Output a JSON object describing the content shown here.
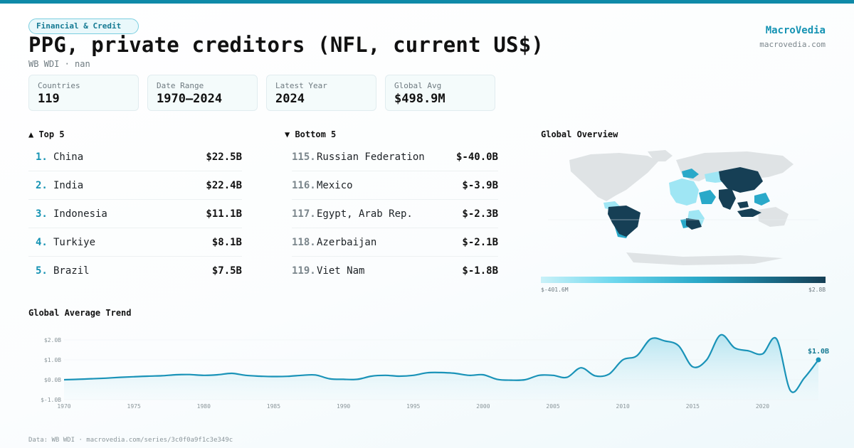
{
  "header": {
    "category": "Financial & Credit",
    "title": "PPG, private creditors (NFL, current US$)",
    "subtitle": "WB WDI · nan",
    "brand": "MacroVedia",
    "brand_url": "macrovedia.com"
  },
  "stats": [
    {
      "label": "Countries",
      "value": "119"
    },
    {
      "label": "Date Range",
      "value": "1970–2024"
    },
    {
      "label": "Latest Year",
      "value": "2024"
    },
    {
      "label": "Global Avg",
      "value": "$498.9M"
    }
  ],
  "top5": {
    "heading": "▲ Top 5",
    "items": [
      {
        "rank": "1.",
        "name": "China",
        "value": "$22.5B"
      },
      {
        "rank": "2.",
        "name": "India",
        "value": "$22.4B"
      },
      {
        "rank": "3.",
        "name": "Indonesia",
        "value": "$11.1B"
      },
      {
        "rank": "4.",
        "name": "Turkiye",
        "value": "$8.1B"
      },
      {
        "rank": "5.",
        "name": "Brazil",
        "value": "$7.5B"
      }
    ]
  },
  "bottom5": {
    "heading": "▼ Bottom 5",
    "items": [
      {
        "rank": "115.",
        "name": "Russian Federation",
        "value": "$-40.0B"
      },
      {
        "rank": "116.",
        "name": "Mexico",
        "value": "$-3.9B"
      },
      {
        "rank": "117.",
        "name": "Egypt, Arab Rep.",
        "value": "$-2.3B"
      },
      {
        "rank": "118.",
        "name": "Azerbaijan",
        "value": "$-2.1B"
      },
      {
        "rank": "119.",
        "name": "Viet Nam",
        "value": "$-1.8B"
      }
    ]
  },
  "map": {
    "heading": "Global Overview",
    "legend_min": "$-401.6M",
    "legend_max": "$2.8B"
  },
  "colors": {
    "accent": "#1593b3",
    "line": "#1a93b8",
    "area": "#bfe8f2",
    "map_dark": "#163f55",
    "map_mid": "#2aa9c9",
    "map_light": "#9fe6f4",
    "map_none": "#dfe3e5"
  },
  "trend": {
    "heading": "Global Average Trend",
    "last_label": "$1.0B"
  },
  "footer": "Data: WB WDI · macrovedia.com/series/3c0f0a9f1c3e349c",
  "chart_data": {
    "type": "area",
    "title": "Global Average Trend",
    "xlabel": "",
    "ylabel": "",
    "xlim": [
      1970,
      2024
    ],
    "ylim": [
      -1.0,
      2.0
    ],
    "unit": "US$ billions",
    "yticks": [
      {
        "v": 2.0,
        "label": "$2.0B"
      },
      {
        "v": 1.0,
        "label": "$1.0B"
      },
      {
        "v": 0.0,
        "label": "$0.0B"
      },
      {
        "v": -1.0,
        "label": "$-1.0B"
      }
    ],
    "xticks": [
      1970,
      1975,
      1980,
      1985,
      1990,
      1995,
      2000,
      2005,
      2010,
      2015,
      2020
    ],
    "grid": false,
    "series": [
      {
        "x": [
          1970,
          1971,
          1972,
          1973,
          1974,
          1975,
          1976,
          1977,
          1978,
          1979,
          1980,
          1981,
          1982,
          1983,
          1984,
          1985,
          1986,
          1987,
          1988,
          1989,
          1990,
          1991,
          1992,
          1993,
          1994,
          1995,
          1996,
          1997,
          1998,
          1999,
          2000,
          2001,
          2002,
          2003,
          2004,
          2005,
          2006,
          2007,
          2008,
          2009,
          2010,
          2011,
          2012,
          2013,
          2014,
          2015,
          2016,
          2017,
          2018,
          2019,
          2020,
          2021,
          2022,
          2023,
          2024
        ],
        "y": [
          0.0,
          0.02,
          0.05,
          0.08,
          0.12,
          0.15,
          0.18,
          0.2,
          0.25,
          0.26,
          0.22,
          0.25,
          0.32,
          0.22,
          0.18,
          0.16,
          0.17,
          0.22,
          0.24,
          0.05,
          0.02,
          0.02,
          0.18,
          0.22,
          0.18,
          0.22,
          0.35,
          0.36,
          0.32,
          0.22,
          0.25,
          0.02,
          -0.02,
          0.0,
          0.22,
          0.22,
          0.12,
          0.6,
          0.2,
          0.28,
          1.0,
          1.2,
          2.05,
          1.95,
          1.7,
          0.65,
          1.0,
          2.25,
          1.6,
          1.45,
          1.3,
          2.05,
          -0.55,
          0.1,
          1.0
        ]
      }
    ]
  }
}
